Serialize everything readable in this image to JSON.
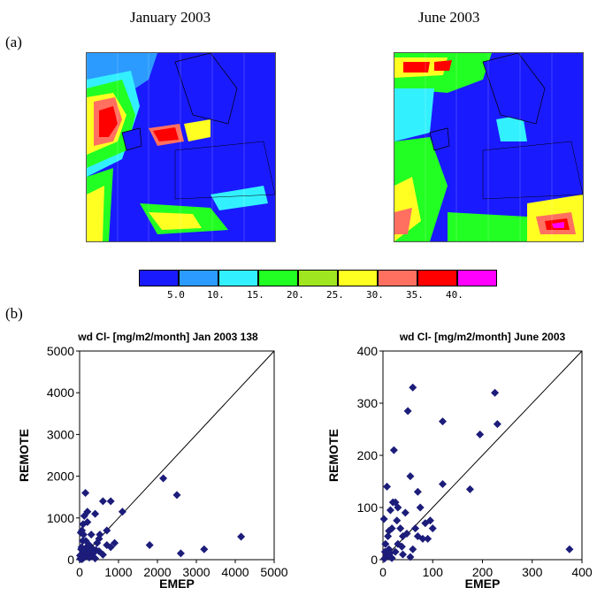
{
  "panel_labels": {
    "a": "(a)",
    "b": "(b)"
  },
  "maps": {
    "left_title": "January 2003",
    "right_title": "June 2003"
  },
  "legend": {
    "colors": [
      "#1a1aff",
      "#2b9bff",
      "#33f0ff",
      "#22ff22",
      "#a0e620",
      "#ffff22",
      "#ff7060",
      "#ff0000",
      "#ff00ff"
    ],
    "ticks": [
      "5.0",
      "10.",
      "15.",
      "20.",
      "25.",
      "30.",
      "35.",
      "40."
    ]
  },
  "chart_data": [
    {
      "type": "scatter",
      "title": "wd Cl- [mg/m2/month] Jan 2003 138",
      "xlabel": "EMEP",
      "ylabel": "REMOTE",
      "xlim": [
        0,
        5000
      ],
      "ylim": [
        0,
        5000
      ],
      "xticks": [
        "0",
        "1000",
        "2000",
        "3000",
        "4000",
        "5000"
      ],
      "yticks": [
        "0",
        "1000",
        "2000",
        "3000",
        "4000",
        "5000"
      ],
      "one_to_one_line": true,
      "marker_color": "#1c1c7a",
      "points": [
        [
          20,
          20
        ],
        [
          40,
          60
        ],
        [
          60,
          10
        ],
        [
          80,
          120
        ],
        [
          100,
          40
        ],
        [
          120,
          200
        ],
        [
          150,
          80
        ],
        [
          180,
          300
        ],
        [
          200,
          150
        ],
        [
          250,
          50
        ],
        [
          300,
          100
        ],
        [
          350,
          250
        ],
        [
          400,
          30
        ],
        [
          500,
          200
        ],
        [
          600,
          120
        ],
        [
          700,
          350
        ],
        [
          800,
          300
        ],
        [
          50,
          300
        ],
        [
          80,
          450
        ],
        [
          100,
          600
        ],
        [
          60,
          700
        ],
        [
          30,
          650
        ],
        [
          120,
          1050
        ],
        [
          200,
          1150
        ],
        [
          400,
          1100
        ],
        [
          150,
          1600
        ],
        [
          600,
          1400
        ],
        [
          800,
          1400
        ],
        [
          700,
          700
        ],
        [
          500,
          500
        ],
        [
          300,
          600
        ],
        [
          250,
          350
        ],
        [
          1100,
          1150
        ],
        [
          1800,
          350
        ],
        [
          2150,
          1950
        ],
        [
          2500,
          1550
        ],
        [
          2600,
          150
        ],
        [
          3200,
          250
        ],
        [
          4150,
          550
        ],
        [
          350,
          150
        ],
        [
          450,
          400
        ],
        [
          900,
          400
        ],
        [
          10,
          100
        ],
        [
          40,
          250
        ],
        [
          90,
          850
        ],
        [
          200,
          900
        ],
        [
          160,
          450
        ],
        [
          250,
          220
        ],
        [
          420,
          230
        ],
        [
          520,
          600
        ]
      ]
    },
    {
      "type": "scatter",
      "title": "wd Cl- [mg/m2/month] June 2003",
      "xlabel": "EMEP",
      "ylabel": "REMOTE",
      "xlim": [
        0,
        400
      ],
      "ylim": [
        0,
        400
      ],
      "xticks": [
        "0",
        "100",
        "200",
        "300",
        "400"
      ],
      "yticks": [
        "0",
        "100",
        "200",
        "300",
        "400"
      ],
      "one_to_one_line": true,
      "marker_color": "#1c1c7a",
      "points": [
        [
          2,
          78
        ],
        [
          5,
          30
        ],
        [
          8,
          10
        ],
        [
          10,
          45
        ],
        [
          12,
          20
        ],
        [
          15,
          5
        ],
        [
          18,
          60
        ],
        [
          20,
          110
        ],
        [
          22,
          210
        ],
        [
          25,
          110
        ],
        [
          30,
          100
        ],
        [
          35,
          60
        ],
        [
          40,
          45
        ],
        [
          45,
          90
        ],
        [
          50,
          285
        ],
        [
          55,
          160
        ],
        [
          60,
          330
        ],
        [
          65,
          60
        ],
        [
          70,
          130
        ],
        [
          75,
          100
        ],
        [
          80,
          40
        ],
        [
          90,
          40
        ],
        [
          95,
          75
        ],
        [
          100,
          60
        ],
        [
          120,
          265
        ],
        [
          120,
          145
        ],
        [
          175,
          135
        ],
        [
          195,
          240
        ],
        [
          225,
          320
        ],
        [
          230,
          260
        ],
        [
          375,
          20
        ],
        [
          3,
          2
        ],
        [
          6,
          5
        ],
        [
          10,
          8
        ],
        [
          14,
          12
        ],
        [
          18,
          3
        ],
        [
          25,
          15
        ],
        [
          30,
          30
        ],
        [
          40,
          10
        ],
        [
          55,
          5
        ],
        [
          8,
          140
        ],
        [
          15,
          95
        ],
        [
          28,
          75
        ],
        [
          38,
          25
        ],
        [
          48,
          50
        ],
        [
          60,
          20
        ],
        [
          70,
          45
        ],
        [
          85,
          70
        ],
        [
          12,
          55
        ],
        [
          4,
          15
        ]
      ]
    }
  ]
}
